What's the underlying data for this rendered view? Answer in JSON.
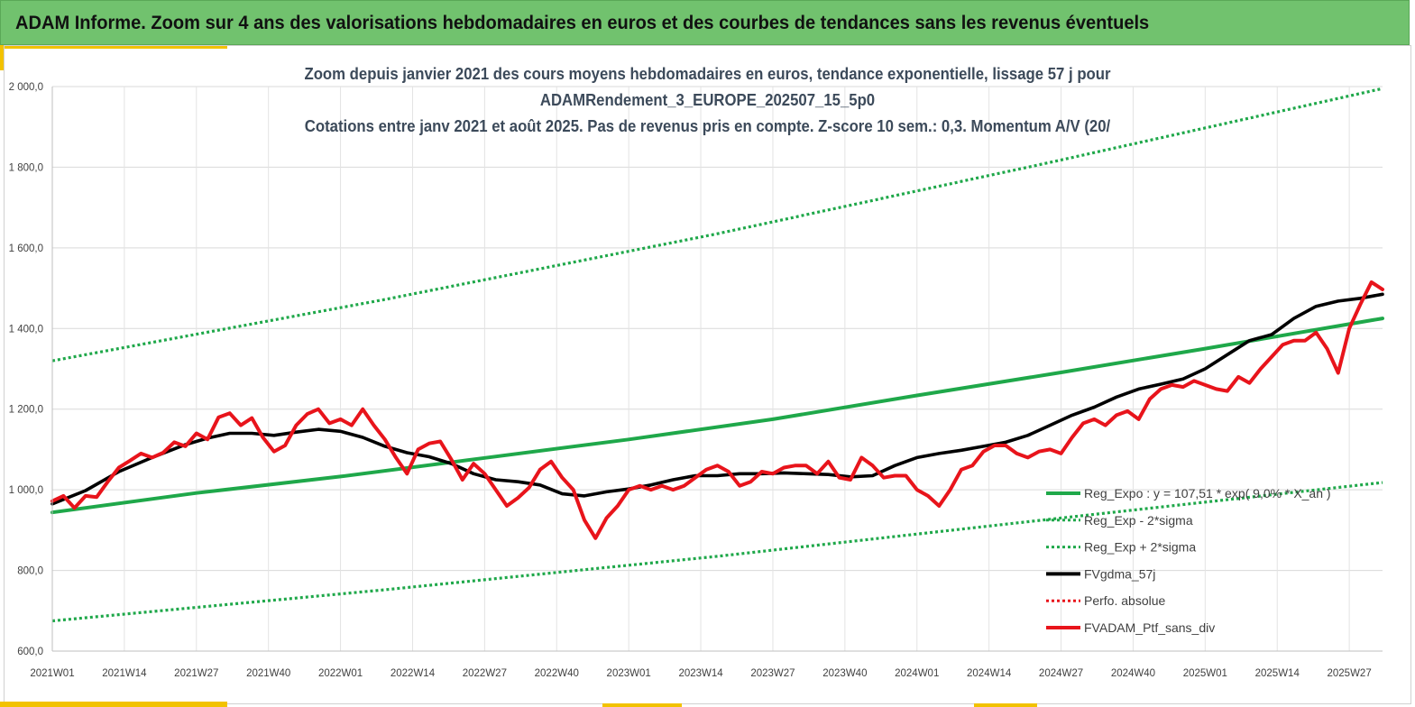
{
  "banner": {
    "title": "ADAM Informe. Zoom sur 4 ans des valorisations hebdomadaires en euros et des courbes de tendances sans les revenus éventuels"
  },
  "colors": {
    "banner_bg": "#71c26e",
    "accent": "#f2c200",
    "trend_green": "#1fa84a",
    "price_red": "#e8141b",
    "ma_black": "#000000"
  },
  "chart_data": {
    "type": "line",
    "title": "Zoom depuis janvier 2021 des cours moyens hebdomadaires  en euros, tendance exponentielle, lissage 57 j pour",
    "title_line2": "ADAMRendement_3_EUROPE_202507_15_5p0",
    "title_line3": "Cotations entre janv 2021 et août 2025. Pas de revenus pris en compte. Z-score 10 sem.: 0,3. Momentum A/V (20/",
    "xlabel": "",
    "ylabel": "",
    "ylim": [
      600,
      2000
    ],
    "yticks": [
      600,
      800,
      1000,
      1200,
      1400,
      1600,
      1800,
      2000
    ],
    "ytick_labels": [
      "600,0",
      "800,0",
      "1 000,0",
      "1 200,0",
      "1 400,0",
      "1 600,0",
      "1 800,0",
      "2 000,0"
    ],
    "x_range": [
      0,
      240
    ],
    "xticks": [
      0,
      13,
      26,
      39,
      52,
      65,
      78,
      91,
      104,
      117,
      130,
      143,
      156,
      169,
      182,
      195,
      208,
      221,
      234
    ],
    "xtick_labels": [
      "2021W01",
      "2021W14",
      "2021W27",
      "2021W40",
      "2022W01",
      "2022W14",
      "2022W27",
      "2022W40",
      "2023W01",
      "2023W14",
      "2023W27",
      "2023W40",
      "2024W01",
      "2024W14",
      "2024W27",
      "2024W40",
      "2025W01",
      "2025W14",
      "2025W27"
    ],
    "grid": true,
    "legend_position": "bottom-right",
    "series": [
      {
        "name": "Reg_Expo : y = 107,51 * exp( 9,0% * X_an )",
        "style": "solid",
        "color": "#1fa84a",
        "x": [
          0,
          26,
          52,
          78,
          104,
          130,
          156,
          182,
          208,
          240
        ],
        "values": [
          944,
          992,
          1033,
          1079,
          1125,
          1175,
          1234,
          1291,
          1350,
          1425
        ]
      },
      {
        "name": "Reg_Exp - 2*sigma",
        "style": "dotted",
        "color": "#1fa84a",
        "x": [
          0,
          60,
          120,
          180,
          240
        ],
        "values": [
          675,
          752,
          835,
          927,
          1018
        ]
      },
      {
        "name": "Reg_Exp + 2*sigma",
        "style": "dotted",
        "color": "#1fa84a",
        "x": [
          0,
          60,
          120,
          180,
          240
        ],
        "values": [
          1320,
          1472,
          1635,
          1812,
          1995
        ]
      },
      {
        "name": "FVgdma_57j",
        "style": "solid",
        "color": "#000000",
        "x": [
          0,
          6,
          12,
          18,
          24,
          28,
          32,
          36,
          40,
          44,
          48,
          52,
          56,
          60,
          64,
          68,
          72,
          76,
          80,
          84,
          88,
          92,
          96,
          100,
          104,
          108,
          112,
          116,
          120,
          124,
          128,
          132,
          136,
          140,
          144,
          148,
          152,
          156,
          160,
          164,
          168,
          172,
          176,
          180,
          184,
          188,
          192,
          196,
          200,
          204,
          208,
          212,
          216,
          220,
          224,
          228,
          232,
          236,
          240
        ],
        "values": [
          965,
          998,
          1045,
          1080,
          1112,
          1128,
          1140,
          1140,
          1135,
          1143,
          1150,
          1145,
          1130,
          1108,
          1092,
          1082,
          1065,
          1040,
          1025,
          1020,
          1012,
          990,
          985,
          995,
          1002,
          1012,
          1025,
          1035,
          1035,
          1040,
          1040,
          1042,
          1040,
          1038,
          1032,
          1035,
          1060,
          1080,
          1090,
          1098,
          1108,
          1118,
          1135,
          1160,
          1185,
          1205,
          1230,
          1250,
          1262,
          1275,
          1300,
          1335,
          1370,
          1385,
          1425,
          1455,
          1468,
          1475,
          1485
        ]
      },
      {
        "name": "Perfo. absolue",
        "style": "dotted",
        "color": "#e8141b",
        "x": [],
        "values": []
      },
      {
        "name": "FVADAM_Ptf_sans_div",
        "style": "solid",
        "color": "#e8141b",
        "x": [
          0,
          2,
          4,
          6,
          8,
          10,
          12,
          14,
          16,
          18,
          20,
          22,
          24,
          26,
          28,
          30,
          32,
          34,
          36,
          38,
          40,
          42,
          44,
          46,
          48,
          50,
          52,
          54,
          56,
          58,
          60,
          62,
          64,
          66,
          68,
          70,
          72,
          74,
          76,
          78,
          80,
          82,
          84,
          86,
          88,
          90,
          92,
          94,
          96,
          98,
          100,
          102,
          104,
          106,
          108,
          110,
          112,
          114,
          116,
          118,
          120,
          122,
          124,
          126,
          128,
          130,
          132,
          134,
          136,
          138,
          140,
          142,
          144,
          146,
          148,
          150,
          152,
          154,
          156,
          158,
          160,
          162,
          164,
          166,
          168,
          170,
          172,
          174,
          176,
          178,
          180,
          182,
          184,
          186,
          188,
          190,
          192,
          194,
          196,
          198,
          200,
          202,
          204,
          206,
          208,
          210,
          212,
          214,
          216,
          218,
          220,
          222,
          224,
          226,
          228,
          230,
          232,
          234,
          236,
          238,
          240
        ],
        "values": [
          972,
          985,
          955,
          985,
          982,
          1020,
          1055,
          1072,
          1090,
          1080,
          1092,
          1118,
          1108,
          1140,
          1125,
          1180,
          1190,
          1160,
          1178,
          1130,
          1095,
          1110,
          1160,
          1188,
          1200,
          1165,
          1175,
          1160,
          1200,
          1160,
          1125,
          1080,
          1040,
          1100,
          1115,
          1120,
          1075,
          1025,
          1065,
          1040,
          1000,
          960,
          980,
          1005,
          1050,
          1070,
          1030,
          1000,
          925,
          880,
          930,
          960,
          1000,
          1010,
          1000,
          1010,
          1000,
          1010,
          1030,
          1050,
          1060,
          1045,
          1010,
          1020,
          1045,
          1040,
          1055,
          1060,
          1060,
          1040,
          1070,
          1030,
          1025,
          1080,
          1060,
          1030,
          1035,
          1035,
          1000,
          985,
          960,
          1000,
          1050,
          1060,
          1095,
          1110,
          1110,
          1090,
          1080,
          1095,
          1100,
          1090,
          1130,
          1165,
          1175,
          1160,
          1185,
          1195,
          1175,
          1225,
          1250,
          1260,
          1255,
          1270,
          1260,
          1250,
          1245,
          1280,
          1265,
          1300,
          1330,
          1360,
          1370,
          1370,
          1390,
          1350,
          1290,
          1400,
          1460,
          1515,
          1497
        ]
      }
    ]
  }
}
